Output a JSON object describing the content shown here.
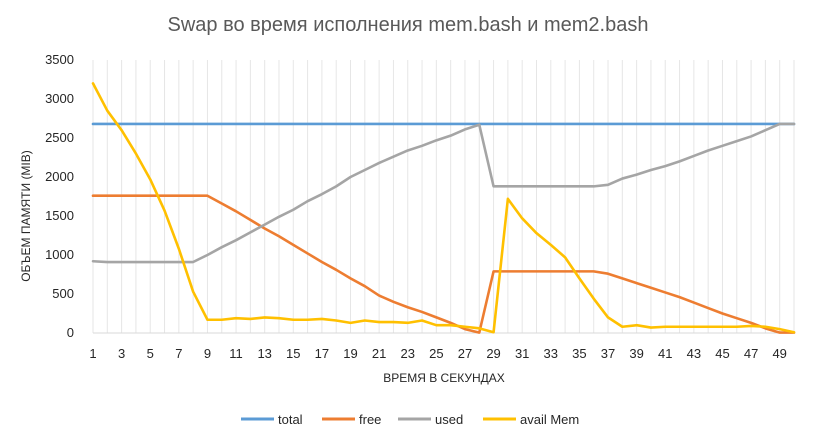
{
  "chart_data": {
    "type": "line",
    "title": "Swap во время исполнения mem.bash и mem2.bash",
    "xlabel": "ВРЕМЯ В СЕКУНДАХ",
    "ylabel": "ОБЪЕМ ПАМЯТИ (MIB)",
    "ylim": [
      0,
      3500
    ],
    "yticks": [
      "0",
      "500",
      "1000",
      "1500",
      "2000",
      "2500",
      "3000",
      "3500"
    ],
    "x": [
      1,
      2,
      3,
      4,
      5,
      6,
      7,
      8,
      9,
      10,
      11,
      12,
      13,
      14,
      15,
      16,
      17,
      18,
      19,
      20,
      21,
      22,
      23,
      24,
      25,
      26,
      27,
      28,
      29,
      30,
      31,
      32,
      33,
      34,
      35,
      36,
      37,
      38,
      39,
      40,
      41,
      42,
      43,
      44,
      45,
      46,
      47,
      48,
      49,
      50
    ],
    "xticks": [
      "1",
      "3",
      "5",
      "7",
      "9",
      "11",
      "13",
      "15",
      "17",
      "19",
      "21",
      "23",
      "25",
      "27",
      "29",
      "31",
      "33",
      "35",
      "37",
      "39",
      "41",
      "43",
      "45",
      "47",
      "49"
    ],
    "grid": "vertical",
    "legend_position": "bottom",
    "series": [
      {
        "name": "total",
        "color": "#5B9BD5",
        "values": [
          2680,
          2680,
          2680,
          2680,
          2680,
          2680,
          2680,
          2680,
          2680,
          2680,
          2680,
          2680,
          2680,
          2680,
          2680,
          2680,
          2680,
          2680,
          2680,
          2680,
          2680,
          2680,
          2680,
          2680,
          2680,
          2680,
          2680,
          2680,
          2680,
          2680,
          2680,
          2680,
          2680,
          2680,
          2680,
          2680,
          2680,
          2680,
          2680,
          2680,
          2680,
          2680,
          2680,
          2680,
          2680,
          2680,
          2680,
          2680,
          2680,
          2680
        ]
      },
      {
        "name": "free",
        "color": "#ED7D31",
        "values": [
          1760,
          1760,
          1760,
          1760,
          1760,
          1760,
          1760,
          1760,
          1760,
          1660,
          1560,
          1450,
          1340,
          1240,
          1130,
          1020,
          910,
          810,
          700,
          600,
          480,
          400,
          330,
          270,
          200,
          130,
          50,
          5,
          790,
          790,
          790,
          790,
          790,
          790,
          790,
          790,
          760,
          700,
          640,
          580,
          520,
          460,
          390,
          320,
          250,
          190,
          130,
          60,
          5,
          5
        ]
      },
      {
        "name": "used",
        "color": "#A5A5A5",
        "values": [
          920,
          910,
          910,
          910,
          910,
          910,
          910,
          910,
          1000,
          1100,
          1190,
          1290,
          1390,
          1490,
          1580,
          1690,
          1780,
          1880,
          2000,
          2090,
          2180,
          2260,
          2340,
          2400,
          2470,
          2530,
          2610,
          2670,
          1880,
          1880,
          1880,
          1880,
          1880,
          1880,
          1880,
          1880,
          1900,
          1980,
          2030,
          2090,
          2140,
          2200,
          2270,
          2340,
          2400,
          2460,
          2520,
          2600,
          2680,
          2680
        ]
      },
      {
        "name": "avail Mem",
        "color": "#FFC000",
        "values": [
          3200,
          2850,
          2600,
          2300,
          1970,
          1570,
          1080,
          530,
          170,
          170,
          190,
          180,
          200,
          190,
          170,
          170,
          180,
          160,
          130,
          160,
          140,
          140,
          130,
          160,
          100,
          100,
          80,
          60,
          10,
          1720,
          1470,
          1280,
          1130,
          970,
          700,
          440,
          200,
          80,
          100,
          70,
          80,
          80,
          80,
          80,
          80,
          80,
          90,
          80,
          50,
          10
        ]
      }
    ]
  }
}
